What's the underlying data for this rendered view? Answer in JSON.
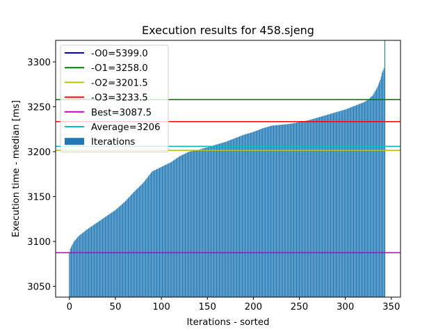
{
  "chart_data": {
    "type": "bar",
    "title": "Execution results for 458.sjeng",
    "xlabel": "Iterations - sorted",
    "ylabel": "Execution time - median [ms]",
    "xlim": [
      -15,
      360
    ],
    "ylim": [
      3038,
      3324
    ],
    "xticks": [
      0,
      50,
      100,
      150,
      200,
      250,
      300,
      350
    ],
    "yticks": [
      3050,
      3100,
      3150,
      3200,
      3250,
      3300
    ],
    "grid": false,
    "legend_position": "top-left",
    "bar_series": {
      "name": "Iterations",
      "color": "#1f77b4",
      "count": 344,
      "sorted_values_keypoints": [
        [
          0,
          3087.5
        ],
        [
          1,
          3092
        ],
        [
          3,
          3096
        ],
        [
          5,
          3100
        ],
        [
          10,
          3106
        ],
        [
          20,
          3114
        ],
        [
          30,
          3121
        ],
        [
          40,
          3128
        ],
        [
          50,
          3135
        ],
        [
          60,
          3144
        ],
        [
          70,
          3155
        ],
        [
          80,
          3165
        ],
        [
          90,
          3178
        ],
        [
          100,
          3183
        ],
        [
          110,
          3188
        ],
        [
          120,
          3195
        ],
        [
          130,
          3200
        ],
        [
          140,
          3202
        ],
        [
          150,
          3205
        ],
        [
          160,
          3208
        ],
        [
          170,
          3211
        ],
        [
          180,
          3215
        ],
        [
          190,
          3219
        ],
        [
          200,
          3222
        ],
        [
          210,
          3226
        ],
        [
          220,
          3229
        ],
        [
          230,
          3230
        ],
        [
          240,
          3231
        ],
        [
          250,
          3233
        ],
        [
          260,
          3235
        ],
        [
          270,
          3238
        ],
        [
          280,
          3241
        ],
        [
          290,
          3244
        ],
        [
          300,
          3247
        ],
        [
          310,
          3251
        ],
        [
          320,
          3255
        ],
        [
          325,
          3258
        ],
        [
          330,
          3263
        ],
        [
          335,
          3272
        ],
        [
          338,
          3280
        ],
        [
          340,
          3288
        ],
        [
          342,
          3293
        ],
        [
          343,
          3330
        ]
      ]
    },
    "reference_lines": [
      {
        "label": "-O0=5399.0",
        "value": 5399.0,
        "color": "#0000cc"
      },
      {
        "label": "-O1=3258.0",
        "value": 3258.0,
        "color": "#008000"
      },
      {
        "label": "-O2=3201.5",
        "value": 3201.5,
        "color": "#bfbf00"
      },
      {
        "label": "-O3=3233.5",
        "value": 3233.5,
        "color": "#ff0000"
      },
      {
        "label": "Best=3087.5",
        "value": 3087.5,
        "color": "#bf00bf"
      },
      {
        "label": "Average=3206",
        "value": 3206,
        "color": "#00bfbf"
      }
    ]
  }
}
